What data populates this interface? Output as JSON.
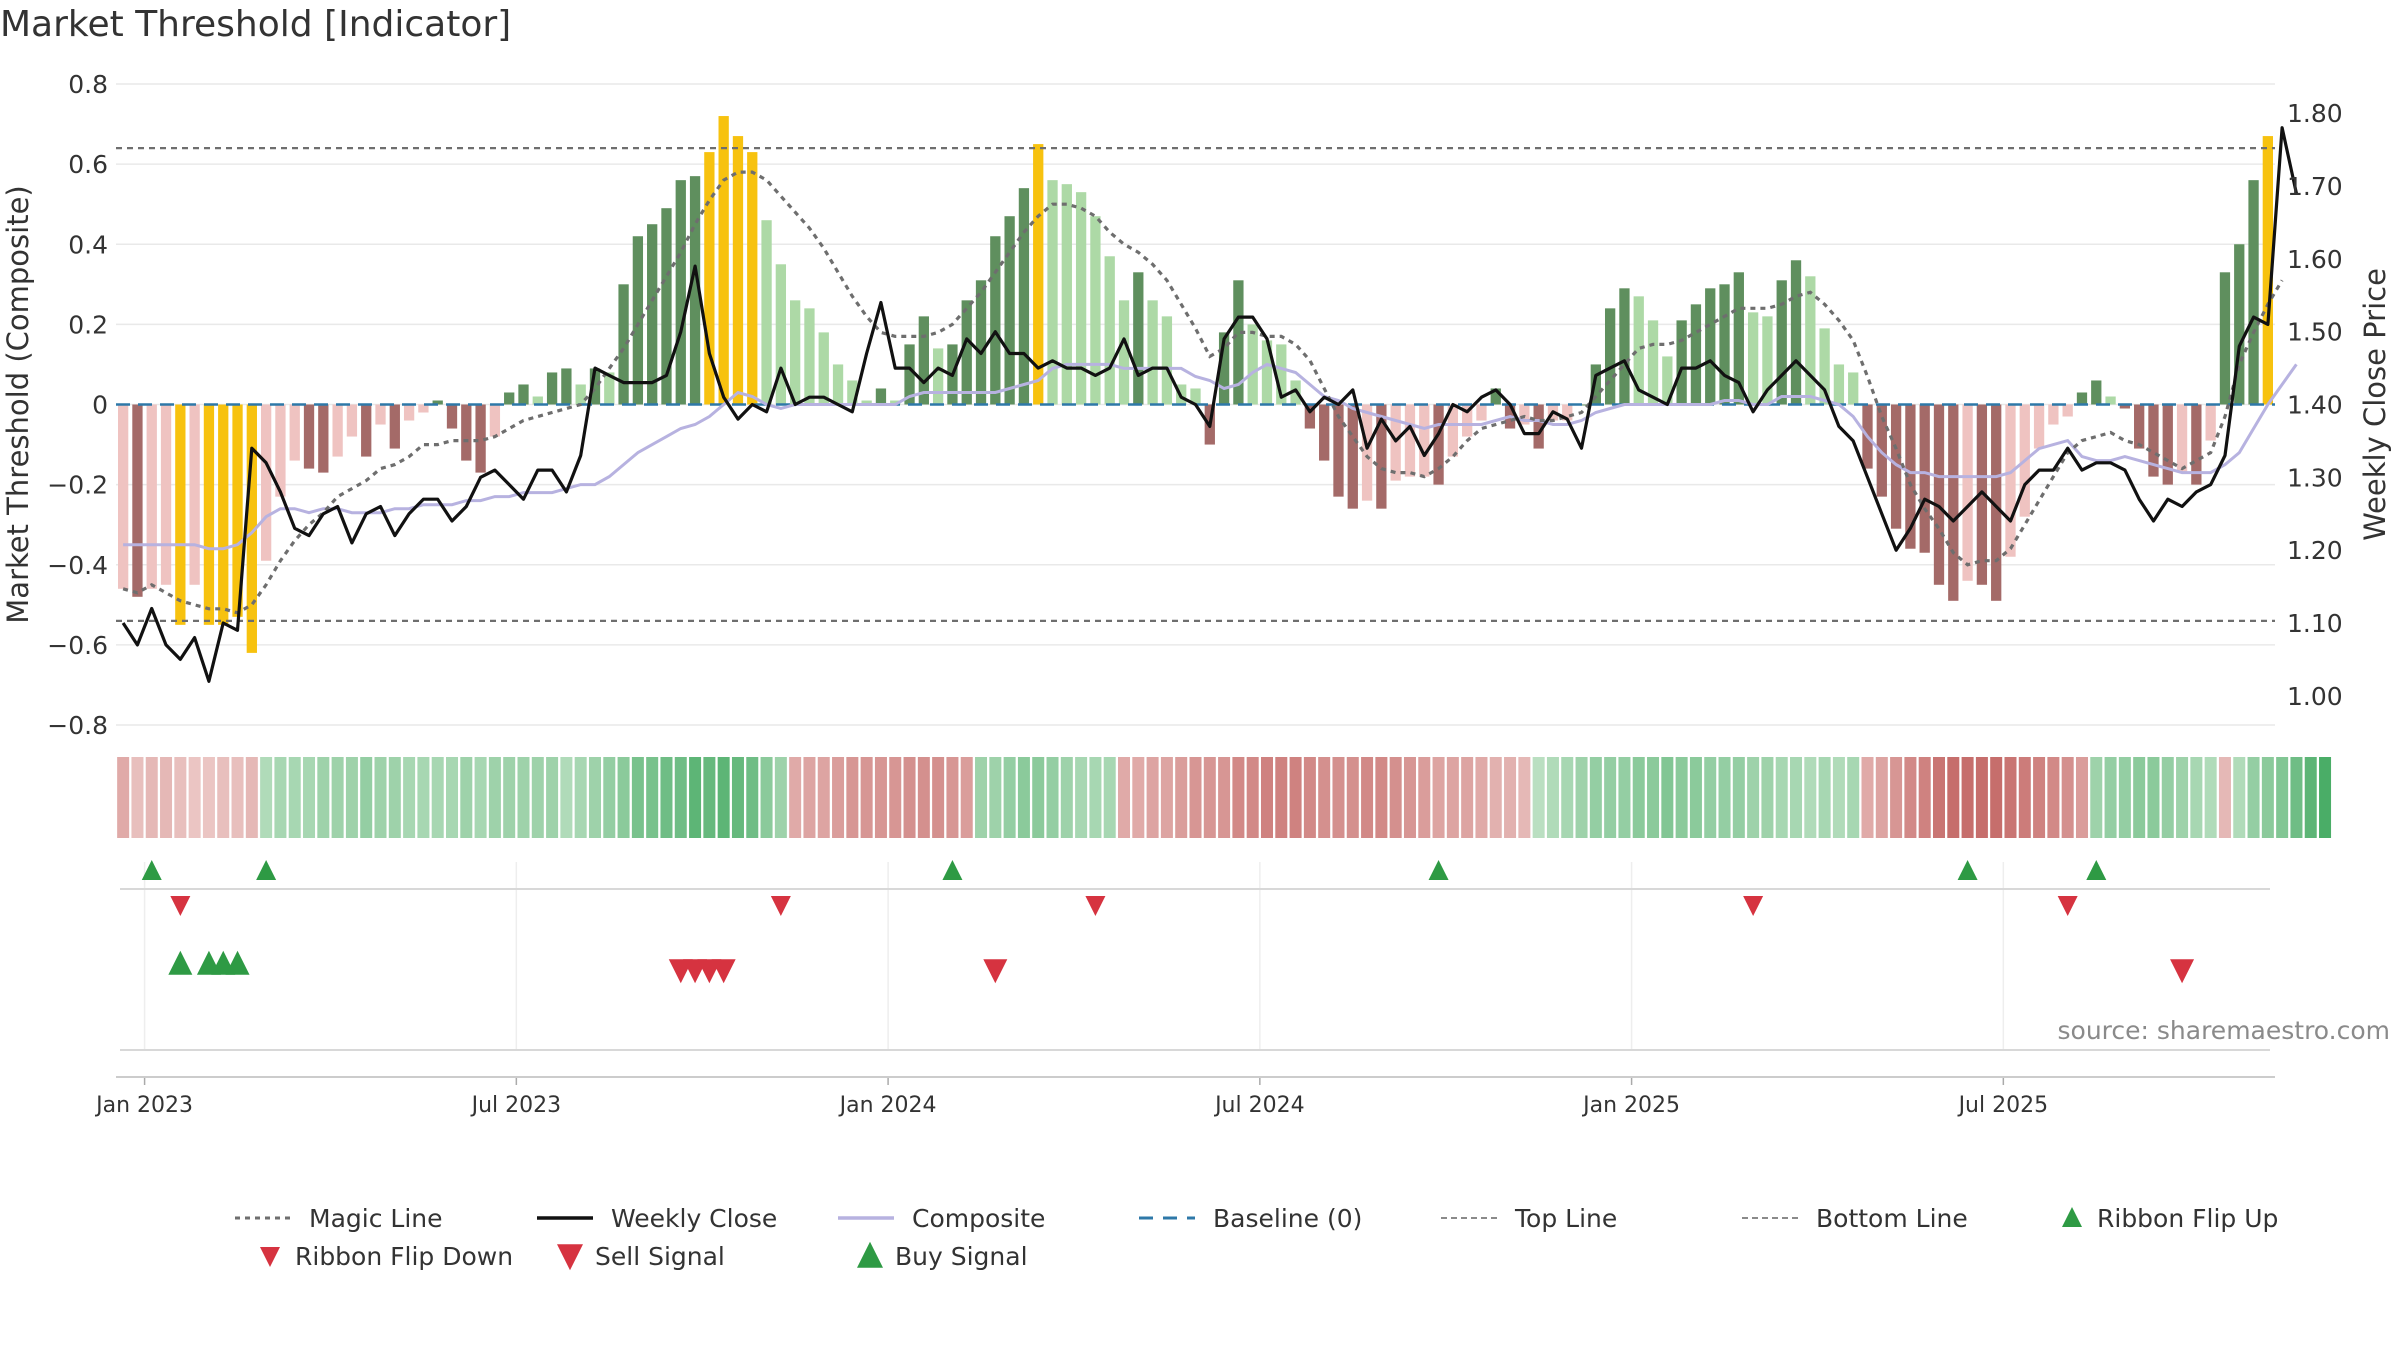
{
  "title": "Market Threshold [Indicator]",
  "source": "source: sharemaestro.com",
  "colors": {
    "magic": "#6e6e6e",
    "close": "#111111",
    "composite": "#b7b2e0",
    "baseline": "#2e78a8",
    "gold": "#f7c20f",
    "buy": "#2e9a44",
    "sell": "#d63340",
    "grid": "#e9e9e9"
  },
  "chart_data": {
    "type": "bar",
    "x_ticks": [
      "Jan 2023",
      "Jul 2023",
      "Jan 2024",
      "Jul 2024",
      "Jan 2025",
      "Jul 2025"
    ],
    "left_axis": {
      "label": "Market Threshold (Composite)",
      "ylim": [
        -0.8,
        0.8
      ],
      "ticks": [
        "0.8",
        "0.6",
        "0.4",
        "0.2",
        "0",
        "−0.2",
        "−0.4",
        "−0.6",
        "−0.8"
      ]
    },
    "right_axis": {
      "label": "Weekly Close Price",
      "ylim": [
        0.96,
        1.84
      ],
      "ticks": [
        "1.80",
        "1.70",
        "1.60",
        "1.50",
        "1.40",
        "1.30",
        "1.20",
        "1.10",
        "1.00"
      ]
    },
    "top_line": 0.64,
    "bottom_line": -0.54,
    "baseline": 0,
    "bars": [
      -0.46,
      -0.48,
      -0.46,
      -0.45,
      -0.55,
      -0.45,
      -0.55,
      -0.55,
      -0.53,
      -0.62,
      -0.39,
      -0.23,
      -0.14,
      -0.16,
      -0.17,
      -0.13,
      -0.08,
      -0.13,
      -0.05,
      -0.11,
      -0.04,
      -0.02,
      0.01,
      -0.06,
      -0.14,
      -0.17,
      -0.08,
      0.03,
      0.05,
      0.02,
      0.08,
      0.09,
      0.05,
      0.09,
      0.08,
      0.3,
      0.42,
      0.45,
      0.49,
      0.56,
      0.57,
      0.63,
      0.72,
      0.67,
      0.63,
      0.46,
      0.35,
      0.26,
      0.24,
      0.18,
      0.1,
      0.06,
      0.01,
      0.04,
      0.01,
      0.15,
      0.22,
      0.14,
      0.15,
      0.26,
      0.31,
      0.42,
      0.47,
      0.54,
      0.65,
      0.56,
      0.55,
      0.53,
      0.47,
      0.37,
      0.26,
      0.33,
      0.26,
      0.22,
      0.05,
      0.04,
      -0.1,
      0.18,
      0.31,
      0.2,
      0.16,
      0.15,
      0.06,
      -0.06,
      -0.14,
      -0.23,
      -0.26,
      -0.24,
      -0.26,
      -0.19,
      -0.18,
      -0.18,
      -0.2,
      -0.13,
      -0.08,
      -0.04,
      0.04,
      -0.06,
      -0.05,
      -0.11,
      -0.04,
      -0.04,
      0.0,
      0.1,
      0.24,
      0.29,
      0.27,
      0.21,
      0.12,
      0.21,
      0.25,
      0.29,
      0.3,
      0.33,
      0.23,
      0.22,
      0.31,
      0.36,
      0.32,
      0.19,
      0.1,
      0.08,
      -0.16,
      -0.23,
      -0.31,
      -0.36,
      -0.37,
      -0.45,
      -0.49,
      -0.44,
      -0.45,
      -0.49,
      -0.38,
      -0.28,
      -0.11,
      -0.05,
      -0.03,
      0.03,
      0.06,
      0.02,
      -0.01,
      -0.11,
      -0.18,
      -0.2,
      -0.17,
      -0.2,
      -0.09,
      0.33,
      0.4,
      0.56,
      0.67
    ],
    "weekly_close": [
      1.1,
      1.07,
      1.12,
      1.07,
      1.05,
      1.08,
      1.02,
      1.1,
      1.09,
      1.34,
      1.32,
      1.28,
      1.23,
      1.22,
      1.25,
      1.26,
      1.21,
      1.25,
      1.26,
      1.22,
      1.25,
      1.27,
      1.27,
      1.24,
      1.26,
      1.3,
      1.31,
      1.29,
      1.27,
      1.31,
      1.31,
      1.28,
      1.33,
      1.45,
      1.44,
      1.43,
      1.43,
      1.43,
      1.44,
      1.5,
      1.59,
      1.47,
      1.41,
      1.38,
      1.4,
      1.39,
      1.45,
      1.4,
      1.41,
      1.41,
      1.4,
      1.39,
      1.47,
      1.54,
      1.45,
      1.45,
      1.43,
      1.45,
      1.44,
      1.49,
      1.47,
      1.5,
      1.47,
      1.47,
      1.45,
      1.46,
      1.45,
      1.45,
      1.44,
      1.45,
      1.49,
      1.44,
      1.45,
      1.45,
      1.41,
      1.4,
      1.37,
      1.49,
      1.52,
      1.52,
      1.49,
      1.41,
      1.42,
      1.39,
      1.41,
      1.4,
      1.42,
      1.34,
      1.38,
      1.35,
      1.37,
      1.33,
      1.36,
      1.4,
      1.39,
      1.41,
      1.42,
      1.4,
      1.36,
      1.36,
      1.39,
      1.38,
      1.34,
      1.44,
      1.45,
      1.46,
      1.42,
      1.41,
      1.4,
      1.45,
      1.45,
      1.46,
      1.44,
      1.43,
      1.39,
      1.42,
      1.44,
      1.46,
      1.44,
      1.42,
      1.37,
      1.35,
      1.3,
      1.25,
      1.2,
      1.23,
      1.27,
      1.26,
      1.24,
      1.26,
      1.28,
      1.26,
      1.24,
      1.29,
      1.31,
      1.31,
      1.34,
      1.31,
      1.32,
      1.32,
      1.31,
      1.27,
      1.24,
      1.27,
      1.26,
      1.28,
      1.29,
      1.33,
      1.48,
      1.52,
      1.51,
      1.78,
      1.69
    ],
    "magic_line": [
      -0.46,
      -0.47,
      -0.45,
      -0.47,
      -0.49,
      -0.5,
      -0.51,
      -0.51,
      -0.52,
      -0.5,
      -0.45,
      -0.39,
      -0.34,
      -0.3,
      -0.27,
      -0.23,
      -0.21,
      -0.19,
      -0.16,
      -0.15,
      -0.13,
      -0.1,
      -0.1,
      -0.09,
      -0.09,
      -0.09,
      -0.08,
      -0.06,
      -0.04,
      -0.03,
      -0.02,
      -0.01,
      0.0,
      0.04,
      0.09,
      0.14,
      0.2,
      0.26,
      0.32,
      0.38,
      0.45,
      0.51,
      0.56,
      0.58,
      0.58,
      0.56,
      0.52,
      0.48,
      0.44,
      0.39,
      0.33,
      0.27,
      0.22,
      0.18,
      0.17,
      0.17,
      0.17,
      0.18,
      0.2,
      0.24,
      0.28,
      0.33,
      0.38,
      0.43,
      0.47,
      0.5,
      0.5,
      0.49,
      0.47,
      0.43,
      0.4,
      0.38,
      0.35,
      0.31,
      0.25,
      0.19,
      0.12,
      0.14,
      0.18,
      0.18,
      0.17,
      0.17,
      0.15,
      0.11,
      0.04,
      -0.03,
      -0.08,
      -0.13,
      -0.16,
      -0.17,
      -0.17,
      -0.18,
      -0.16,
      -0.13,
      -0.09,
      -0.06,
      -0.05,
      -0.04,
      -0.03,
      -0.04,
      -0.04,
      -0.03,
      -0.02,
      0.02,
      0.06,
      0.1,
      0.14,
      0.15,
      0.15,
      0.16,
      0.18,
      0.2,
      0.22,
      0.24,
      0.24,
      0.24,
      0.25,
      0.27,
      0.28,
      0.25,
      0.21,
      0.16,
      0.07,
      -0.03,
      -0.11,
      -0.2,
      -0.26,
      -0.31,
      -0.37,
      -0.4,
      -0.39,
      -0.39,
      -0.36,
      -0.3,
      -0.24,
      -0.18,
      -0.12,
      -0.09,
      -0.08,
      -0.07,
      -0.09,
      -0.1,
      -0.12,
      -0.14,
      -0.16,
      -0.14,
      -0.12,
      -0.03,
      0.1,
      0.18,
      0.25,
      0.31
    ],
    "composite": [
      -0.35,
      -0.35,
      -0.35,
      -0.35,
      -0.35,
      -0.35,
      -0.36,
      -0.36,
      -0.35,
      -0.32,
      -0.28,
      -0.26,
      -0.26,
      -0.27,
      -0.26,
      -0.26,
      -0.27,
      -0.27,
      -0.27,
      -0.26,
      -0.26,
      -0.25,
      -0.25,
      -0.25,
      -0.24,
      -0.24,
      -0.23,
      -0.23,
      -0.22,
      -0.22,
      -0.22,
      -0.21,
      -0.2,
      -0.2,
      -0.18,
      -0.15,
      -0.12,
      -0.1,
      -0.08,
      -0.06,
      -0.05,
      -0.03,
      0.0,
      0.03,
      0.02,
      0.0,
      -0.01,
      0.0,
      0.0,
      0.0,
      0.0,
      0.0,
      0.0,
      0.0,
      0.0,
      0.02,
      0.03,
      0.03,
      0.03,
      0.03,
      0.03,
      0.03,
      0.04,
      0.05,
      0.06,
      0.09,
      0.1,
      0.1,
      0.1,
      0.1,
      0.09,
      0.09,
      0.09,
      0.09,
      0.09,
      0.07,
      0.06,
      0.04,
      0.05,
      0.08,
      0.1,
      0.09,
      0.08,
      0.05,
      0.02,
      0.01,
      -0.01,
      -0.02,
      -0.03,
      -0.04,
      -0.05,
      -0.06,
      -0.05,
      -0.05,
      -0.05,
      -0.05,
      -0.04,
      -0.03,
      -0.04,
      -0.04,
      -0.05,
      -0.05,
      -0.04,
      -0.02,
      -0.01,
      0.0,
      0.0,
      0.0,
      0.0,
      0.0,
      0.0,
      0.0,
      0.01,
      0.01,
      0.0,
      0.0,
      0.02,
      0.02,
      0.02,
      0.01,
      0.0,
      -0.03,
      -0.08,
      -0.12,
      -0.15,
      -0.17,
      -0.17,
      -0.18,
      -0.18,
      -0.18,
      -0.18,
      -0.18,
      -0.17,
      -0.14,
      -0.11,
      -0.1,
      -0.09,
      -0.13,
      -0.14,
      -0.14,
      -0.13,
      -0.14,
      -0.15,
      -0.16,
      -0.17,
      -0.17,
      -0.17,
      -0.15,
      -0.12,
      -0.06,
      0.0,
      0.05,
      0.1
    ],
    "ribbon": [
      -0.4,
      -0.25,
      -0.3,
      -0.3,
      -0.25,
      -0.2,
      -0.2,
      -0.25,
      -0.25,
      -0.3,
      0.3,
      0.35,
      0.35,
      0.35,
      0.4,
      0.4,
      0.4,
      0.45,
      0.4,
      0.4,
      0.35,
      0.35,
      0.35,
      0.35,
      0.4,
      0.35,
      0.4,
      0.4,
      0.4,
      0.4,
      0.4,
      0.3,
      0.35,
      0.4,
      0.45,
      0.5,
      0.6,
      0.6,
      0.65,
      0.65,
      0.75,
      0.7,
      0.75,
      0.7,
      0.65,
      0.5,
      0.4,
      -0.4,
      -0.45,
      -0.45,
      -0.5,
      -0.55,
      -0.55,
      -0.55,
      -0.55,
      -0.6,
      -0.6,
      -0.6,
      -0.55,
      -0.5,
      0.4,
      0.4,
      0.45,
      0.5,
      0.5,
      0.45,
      0.4,
      0.35,
      0.35,
      0.35,
      -0.4,
      -0.4,
      -0.45,
      -0.45,
      -0.5,
      -0.55,
      -0.55,
      -0.55,
      -0.65,
      -0.65,
      -0.7,
      -0.7,
      -0.7,
      -0.65,
      -0.6,
      -0.6,
      -0.6,
      -0.65,
      -0.65,
      -0.6,
      -0.55,
      -0.5,
      -0.45,
      -0.45,
      -0.45,
      -0.4,
      -0.35,
      -0.35,
      -0.3,
      0.25,
      0.3,
      0.35,
      0.4,
      0.45,
      0.45,
      0.45,
      0.5,
      0.5,
      0.55,
      0.5,
      0.5,
      0.45,
      0.45,
      0.45,
      0.4,
      0.4,
      0.35,
      0.35,
      0.3,
      0.35,
      0.3,
      0.35,
      -0.4,
      -0.45,
      -0.55,
      -0.65,
      -0.7,
      -0.8,
      -0.85,
      -0.85,
      -0.85,
      -0.85,
      -0.8,
      -0.75,
      -0.7,
      -0.65,
      -0.6,
      -0.5,
      0.4,
      0.45,
      0.45,
      0.5,
      0.5,
      0.45,
      0.4,
      0.35,
      0.3,
      -0.3,
      0.3,
      0.45,
      0.5,
      0.55,
      0.65,
      0.75,
      0.85
    ],
    "ribbon_flip_up": [
      2,
      10,
      58,
      92,
      129,
      138
    ],
    "ribbon_flip_down": [
      4,
      46,
      68,
      114,
      136
    ],
    "buy_signal": [
      4,
      6,
      7,
      8
    ],
    "sell_signal": [
      39,
      40,
      41,
      42,
      61,
      144
    ],
    "legend": [
      "Magic Line",
      "Weekly Close",
      "Composite",
      "Baseline (0)",
      "Top Line",
      "Bottom Line",
      "Ribbon Flip Up",
      "Ribbon Flip Down",
      "Sell Signal",
      "Buy Signal"
    ]
  }
}
